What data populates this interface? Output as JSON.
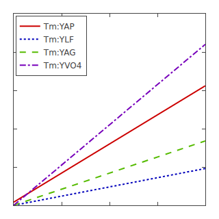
{
  "chart_data": {
    "type": "line",
    "x": [
      0,
      1
    ],
    "series": [
      {
        "name": "Tm:YAP",
        "color": "#cc0000",
        "line_style": "solid",
        "values": [
          0.02,
          0.78
        ]
      },
      {
        "name": "Tm:YLF",
        "color": "#0000bb",
        "line_style": "dotted",
        "values": [
          0.0,
          0.24
        ]
      },
      {
        "name": "Tm:YAG",
        "color": "#55bb00",
        "line_style": "dashed",
        "values": [
          0.0,
          0.42
        ]
      },
      {
        "name": "Tm:YVO4",
        "color": "#7700bb",
        "line_style": "dashdot",
        "values": [
          0.0,
          1.05
        ]
      }
    ],
    "xlim": [
      0,
      1
    ],
    "ylim": [
      0,
      1.25
    ],
    "xticks": [
      0,
      0.25,
      0.5,
      0.75,
      1
    ],
    "yticks": [
      0,
      0.25,
      0.5,
      0.75,
      1,
      1.25
    ],
    "tick_labels": false,
    "grid": false,
    "legend": "upper left"
  }
}
